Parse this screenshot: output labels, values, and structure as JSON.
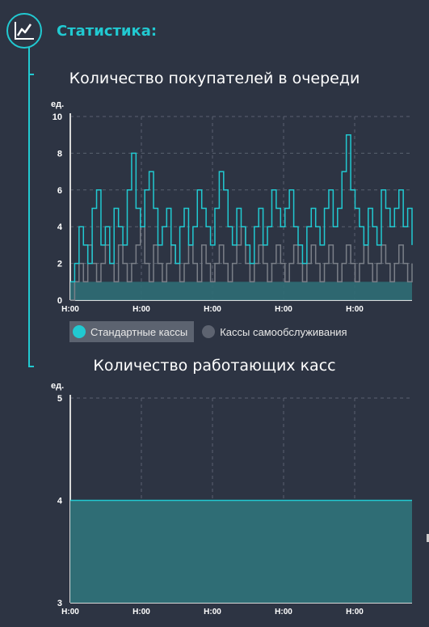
{
  "header": {
    "title": "Статистика:",
    "icon": "line-chart-icon"
  },
  "colors": {
    "accent": "#21c9d1",
    "standard": "#21c9d1",
    "self": "#7a7f88",
    "background": "#2d3443"
  },
  "chart_data": [
    {
      "type": "area",
      "title": "Количество покупателей в очереди",
      "ylabel": "ед.",
      "ylim": [
        0,
        10
      ],
      "yticks": [
        0,
        2,
        4,
        6,
        8,
        10
      ],
      "xticks": [
        "H:00",
        "H:00",
        "H:00",
        "H:00",
        "H:00"
      ],
      "x": [
        0,
        0.04,
        0.08,
        0.12,
        0.16,
        0.2,
        0.24,
        0.28,
        0.32,
        0.36,
        0.4,
        0.44,
        0.48,
        0.52,
        0.56,
        0.6,
        0.64,
        0.68,
        0.72,
        0.76,
        0.8,
        0.84,
        0.88,
        0.92,
        0.96,
        1,
        1.04,
        1.08,
        1.12,
        1.16,
        1.2,
        1.24,
        1.28,
        1.32,
        1.36,
        1.4,
        1.44,
        1.48,
        1.52,
        1.56,
        1.6,
        1.64,
        1.68,
        1.72,
        1.76,
        1.8,
        1.84,
        1.88,
        1.92,
        1.96,
        2,
        2.04,
        2.08,
        2.12,
        2.16,
        2.2,
        2.24,
        2.28,
        2.32,
        2.36,
        2.4,
        2.44,
        2.48,
        2.52,
        2.56,
        2.6,
        2.64,
        2.68,
        2.72,
        2.76,
        2.8,
        2.84,
        2.88,
        2.92,
        2.96,
        3,
        3.04,
        3.08,
        3.12
      ],
      "legend": [
        "Стандартные кассы",
        "Кассы самообслуживания"
      ],
      "active_legend": 0,
      "series": [
        {
          "name": "Стандартные кассы",
          "values": [
            1,
            2,
            4,
            3,
            2,
            5,
            6,
            3,
            4,
            2,
            5,
            4,
            3,
            6,
            8,
            5,
            4,
            6,
            7,
            5,
            3,
            4,
            5,
            3,
            2,
            4,
            5,
            3,
            4,
            6,
            5,
            4,
            3,
            5,
            7,
            6,
            4,
            3,
            5,
            4,
            3,
            2,
            4,
            5,
            3,
            4,
            6,
            5,
            4,
            5,
            6,
            4,
            3,
            2,
            4,
            5,
            4,
            3,
            5,
            6,
            4,
            5,
            7,
            9,
            6,
            5,
            4,
            3,
            5,
            4,
            3,
            6,
            5,
            4,
            5,
            6,
            4,
            5,
            3
          ]
        },
        {
          "name": "Кассы самообслуживания",
          "values": [
            0,
            1,
            2,
            1,
            3,
            2,
            1,
            2,
            3,
            2,
            1,
            3,
            2,
            1,
            2,
            3,
            4,
            2,
            1,
            3,
            2,
            1,
            2,
            3,
            2,
            1,
            2,
            3,
            2,
            1,
            3,
            2,
            1,
            2,
            3,
            2,
            1,
            2,
            3,
            4,
            2,
            1,
            2,
            3,
            2,
            1,
            2,
            3,
            2,
            1,
            2,
            3,
            2,
            1,
            2,
            3,
            2,
            1,
            2,
            3,
            2,
            1,
            2,
            3,
            2,
            1,
            2,
            3,
            2,
            1,
            2,
            3,
            2,
            1,
            2,
            3,
            2,
            1,
            2
          ]
        }
      ]
    },
    {
      "type": "area",
      "title": "Количество работающих касс",
      "ylabel": "ед.",
      "ylim": [
        3,
        5
      ],
      "yticks": [
        3,
        4,
        5
      ],
      "xticks": [
        "H:00",
        "H:00",
        "H:00",
        "H:00",
        "H:00"
      ],
      "x": [
        0,
        3.12
      ],
      "series": [
        {
          "values": [
            4,
            4
          ]
        }
      ]
    }
  ]
}
